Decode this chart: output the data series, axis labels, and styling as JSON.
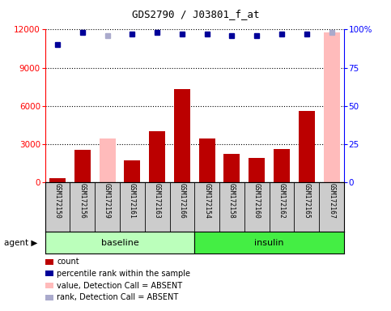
{
  "title": "GDS2790 / J03801_f_at",
  "samples": [
    "GSM172150",
    "GSM172156",
    "GSM172159",
    "GSM172161",
    "GSM172163",
    "GSM172166",
    "GSM172154",
    "GSM172158",
    "GSM172160",
    "GSM172162",
    "GSM172165",
    "GSM172167"
  ],
  "count_values": [
    300,
    2500,
    0,
    1700,
    4000,
    7300,
    3400,
    2200,
    1900,
    2600,
    5600,
    0
  ],
  "absent_value_bars": [
    null,
    null,
    3400,
    null,
    null,
    null,
    null,
    null,
    null,
    null,
    null,
    11800
  ],
  "percentile_ranks": [
    90,
    98,
    null,
    97,
    98,
    97,
    97,
    96,
    96,
    97,
    97,
    null
  ],
  "absent_rank_dots": [
    null,
    null,
    96,
    null,
    null,
    null,
    null,
    null,
    null,
    null,
    null,
    98
  ],
  "count_color": "#bb0000",
  "absent_bar_color": "#ffbbbb",
  "rank_color": "#000099",
  "absent_rank_color": "#aaaacc",
  "ylim_left": [
    0,
    12000
  ],
  "ylim_right": [
    0,
    100
  ],
  "yticks_left": [
    0,
    3000,
    6000,
    9000,
    12000
  ],
  "yticks_right": [
    0,
    25,
    50,
    75,
    100
  ],
  "yticklabels_right": [
    "0",
    "25",
    "50",
    "75",
    "100%"
  ],
  "baseline_color": "#bbffbb",
  "insulin_color": "#44ee44",
  "sample_bg": "#cccccc",
  "legend_items": [
    {
      "label": "count",
      "color": "#bb0000"
    },
    {
      "label": "percentile rank within the sample",
      "color": "#000099"
    },
    {
      "label": "value, Detection Call = ABSENT",
      "color": "#ffbbbb"
    },
    {
      "label": "rank, Detection Call = ABSENT",
      "color": "#aaaacc"
    }
  ]
}
